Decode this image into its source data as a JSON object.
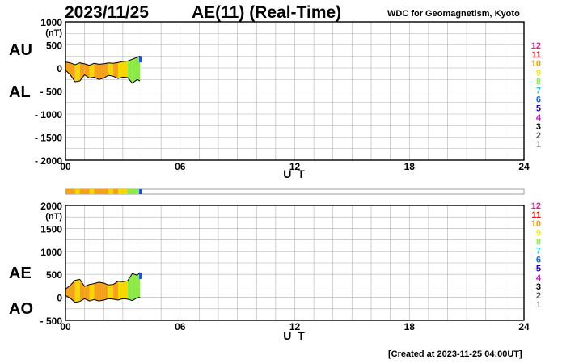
{
  "header": {
    "date": "2023/11/25",
    "title": "AE(11) (Real-Time)",
    "source": "WDC for Geomagnetism, Kyoto"
  },
  "footer": {
    "created": "[Created at 2023-11-25 04:00UT]"
  },
  "colors": {
    "hours": [
      "#d8d8d8",
      "#a0a0a0",
      "#505050",
      "#000000",
      "#d000d0",
      "#2000c0",
      "#1060e0",
      "#20d0e0",
      "#80f040",
      "#f0f000",
      "#f0a000",
      "#e01010",
      "#ff1090"
    ],
    "bar_orange": "#f7a11a",
    "bar_yellow": "#f5d800",
    "bar_green": "#8ee84a",
    "bar_blue": "#1a50d8",
    "grid": "#b0b0b0"
  },
  "chart_data": [
    {
      "type": "area",
      "panel": "AU/AL",
      "side_labels": [
        "AU",
        "AL"
      ],
      "ylabel": "(nT)",
      "ylim": [
        -2000,
        1000
      ],
      "yticks": [
        1000,
        500,
        0,
        -500,
        -1000,
        -1500,
        -2000
      ],
      "ytick_labels": [
        "1000",
        "500",
        "0",
        "- 500",
        "- 1000",
        "- 1500",
        "- 2000"
      ],
      "xlabel": "U T",
      "xlim": [
        0,
        24
      ],
      "xticks": [
        0,
        6,
        12,
        18,
        24
      ],
      "xtick_labels": [
        "00",
        "06",
        "12",
        "18",
        "24"
      ],
      "color_scale_labels": [
        "12",
        "11",
        "10",
        "9",
        "8",
        "7",
        "6",
        "5",
        "4",
        "3",
        "2",
        "1"
      ],
      "series": [
        {
          "x": [
            0,
            0.25,
            0.5,
            0.75,
            1.0,
            1.25,
            1.5,
            1.75,
            2.0,
            2.25,
            2.5,
            2.75,
            3.0,
            3.25,
            3.5,
            3.75,
            3.9
          ],
          "values": [
            130,
            110,
            70,
            110,
            90,
            60,
            100,
            80,
            90,
            110,
            100,
            120,
            140,
            150,
            190,
            230,
            260
          ]
        },
        {
          "x": [
            0,
            0.25,
            0.5,
            0.75,
            1.0,
            1.25,
            1.5,
            1.75,
            2.0,
            2.25,
            2.5,
            2.75,
            3.0,
            3.25,
            3.5,
            3.75,
            3.9
          ],
          "values": [
            -50,
            -150,
            -300,
            -280,
            -150,
            -220,
            -200,
            -250,
            -220,
            -160,
            -180,
            -230,
            -200,
            -210,
            -330,
            -250,
            -280
          ]
        }
      ]
    },
    {
      "type": "area",
      "panel": "AE/AO",
      "side_labels": [
        "AE",
        "AO"
      ],
      "ylabel": "(nT)",
      "ylim": [
        -500,
        2000
      ],
      "yticks": [
        2000,
        1500,
        1000,
        500,
        0,
        -500
      ],
      "ytick_labels": [
        "2000",
        "1500",
        "1000",
        "500",
        "0",
        "- 500"
      ],
      "xlabel": "U T",
      "xlim": [
        0,
        24
      ],
      "xticks": [
        0,
        6,
        12,
        18,
        24
      ],
      "xtick_labels": [
        "00",
        "06",
        "12",
        "18",
        "24"
      ],
      "color_scale_labels": [
        "12",
        "11",
        "10",
        "9",
        "8",
        "7",
        "6",
        "5",
        "4",
        "3",
        "2",
        "1"
      ],
      "series": [
        {
          "x": [
            0,
            0.25,
            0.5,
            0.75,
            1.0,
            1.25,
            1.5,
            1.75,
            2.0,
            2.25,
            2.5,
            2.75,
            3.0,
            3.25,
            3.5,
            3.75,
            3.9
          ],
          "values": [
            180,
            260,
            370,
            390,
            240,
            280,
            300,
            330,
            310,
            270,
            280,
            350,
            340,
            360,
            520,
            480,
            540
          ]
        },
        {
          "x": [
            0,
            0.25,
            0.5,
            0.75,
            1.0,
            1.25,
            1.5,
            1.75,
            2.0,
            2.25,
            2.5,
            2.75,
            3.0,
            3.25,
            3.5,
            3.75,
            3.9
          ],
          "values": [
            40,
            -20,
            -110,
            -90,
            -30,
            -80,
            -50,
            -80,
            -60,
            -30,
            -40,
            -60,
            -30,
            -40,
            -70,
            -10,
            0
          ]
        }
      ]
    }
  ]
}
